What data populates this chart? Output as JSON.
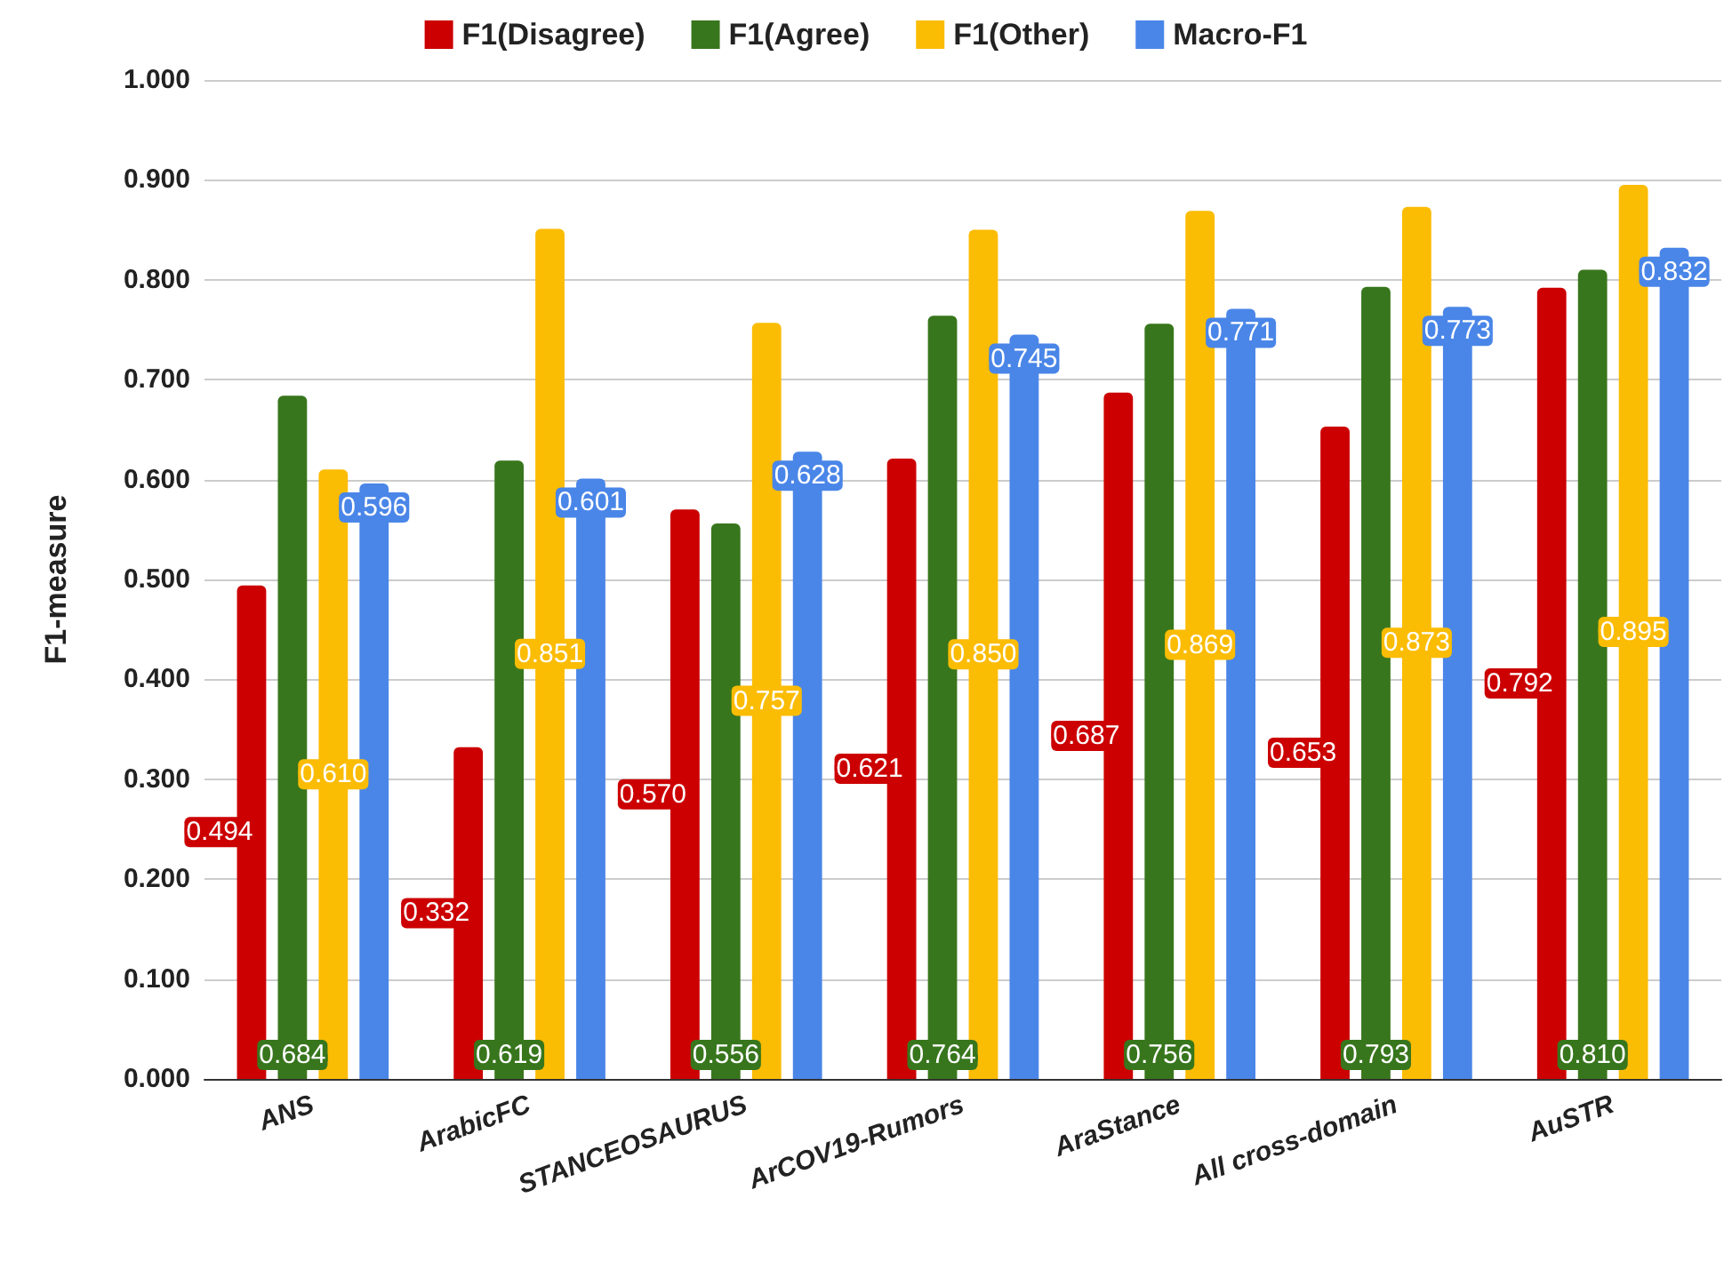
{
  "chart_data": {
    "type": "bar",
    "ylabel": "F1-measure",
    "categories": [
      "ANS",
      "ArabicFC",
      "STANCEOSAURUS",
      "ArCOV19-Rumors",
      "AraStance",
      "All cross-domain",
      "AuSTR"
    ],
    "series": [
      {
        "name": "F1(Disagree)",
        "color": "#cc0000",
        "values": [
          0.494,
          0.332,
          0.57,
          0.621,
          0.687,
          0.653,
          0.792
        ],
        "value_labels": [
          "0.494",
          "0.332",
          "0.570",
          "0.621",
          "0.687",
          "0.653",
          "0.792"
        ]
      },
      {
        "name": "F1(Agree)",
        "color": "#38761d",
        "values": [
          0.684,
          0.619,
          0.556,
          0.764,
          0.756,
          0.793,
          0.81
        ],
        "value_labels": [
          "0.684",
          "0.619",
          "0.556",
          "0.764",
          "0.756",
          "0.793",
          "0.810"
        ]
      },
      {
        "name": "F1(Other)",
        "color": "#fbbc04",
        "values": [
          0.61,
          0.851,
          0.757,
          0.85,
          0.869,
          0.873,
          0.895
        ],
        "value_labels": [
          "0.610",
          "0.851",
          "0.757",
          "0.850",
          "0.869",
          "0.873",
          "0.895"
        ]
      },
      {
        "name": "Macro-F1",
        "color": "#4a86e8",
        "values": [
          0.596,
          0.601,
          0.628,
          0.745,
          0.771,
          0.773,
          0.832
        ],
        "value_labels": [
          "0.596",
          "0.601",
          "0.628",
          "0.745",
          "0.771",
          "0.773",
          "0.832"
        ]
      }
    ],
    "ylim": [
      0,
      1
    ],
    "yticks": [
      {
        "value": 0,
        "label": "0.000"
      },
      {
        "value": 0.1,
        "label": "0.100"
      },
      {
        "value": 0.2,
        "label": "0.200"
      },
      {
        "value": 0.3,
        "label": "0.300"
      },
      {
        "value": 0.4,
        "label": "0.400"
      },
      {
        "value": 0.5,
        "label": "0.500"
      },
      {
        "value": 0.6,
        "label": "0.600"
      },
      {
        "value": 0.7,
        "label": "0.700"
      },
      {
        "value": 0.8,
        "label": "0.800"
      },
      {
        "value": 0.9,
        "label": "0.900"
      },
      {
        "value": 1,
        "label": "1.000"
      }
    ],
    "grid": "y",
    "legend": "top"
  }
}
